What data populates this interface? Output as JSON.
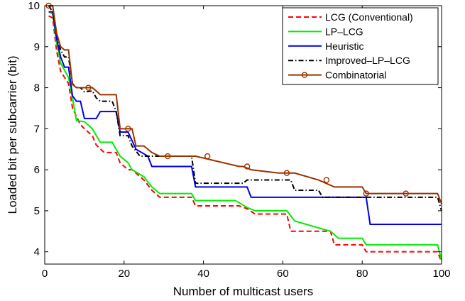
{
  "chart_data": {
    "type": "line",
    "title": "",
    "xlabel": "Number of multicast users",
    "ylabel": "Loaded bit per subcarrier (bit)",
    "xlim": [
      0,
      100
    ],
    "ylim": [
      3.7,
      10
    ],
    "xticks": [
      0,
      20,
      40,
      60,
      80,
      100
    ],
    "yticks": [
      4,
      5,
      6,
      7,
      8,
      9,
      10
    ],
    "grid": false,
    "legend_position": "top-right",
    "series": [
      {
        "name": "LCG (Conventional)",
        "color": "#ff0000",
        "style": "dashed",
        "marker": "none",
        "x": [
          1,
          2,
          3,
          4,
          6,
          7,
          9,
          10,
          12,
          13,
          15,
          18,
          19,
          21,
          22,
          25,
          27,
          29,
          37,
          38,
          49,
          51,
          53,
          61,
          62,
          72,
          73,
          80,
          81,
          99,
          100
        ],
        "y": [
          9.75,
          9.7,
          8.9,
          8.4,
          8.1,
          7.5,
          7.1,
          7.0,
          6.83,
          6.6,
          6.42,
          6.42,
          6.17,
          6.0,
          6.0,
          5.75,
          5.5,
          5.33,
          5.33,
          5.12,
          5.12,
          5.05,
          4.92,
          4.92,
          4.5,
          4.5,
          4.17,
          4.17,
          4.0,
          4.0,
          3.75
        ]
      },
      {
        "name": "LP–LCG",
        "color": "#00ee00",
        "style": "solid",
        "marker": "none",
        "x": [
          1,
          2,
          3,
          4,
          6,
          7,
          8,
          10,
          12,
          14,
          17,
          19,
          21,
          22,
          25,
          27,
          29,
          37,
          38,
          48,
          51,
          53,
          61,
          63,
          72,
          74,
          80,
          81,
          99,
          100
        ],
        "y": [
          9.85,
          9.8,
          9.1,
          8.6,
          8.25,
          7.75,
          7.2,
          7.17,
          7.0,
          6.67,
          6.67,
          6.33,
          6.17,
          6.0,
          5.83,
          5.58,
          5.42,
          5.42,
          5.25,
          5.25,
          5.08,
          5.0,
          5.0,
          4.75,
          4.5,
          4.33,
          4.33,
          4.17,
          4.17,
          3.8
        ]
      },
      {
        "name": "Heuristic",
        "color": "#0000ee",
        "style": "solid",
        "marker": "none",
        "x": [
          1,
          2,
          3,
          4,
          5,
          6,
          7,
          8,
          9,
          10,
          13,
          14,
          18,
          19,
          21,
          23,
          26,
          27,
          37,
          38,
          51,
          52,
          81,
          82,
          100
        ],
        "y": [
          9.85,
          9.85,
          9.2,
          8.75,
          8.5,
          8.5,
          7.8,
          7.67,
          7.67,
          7.25,
          7.25,
          7.42,
          7.42,
          6.92,
          6.92,
          6.5,
          6.33,
          6.08,
          6.08,
          5.58,
          5.58,
          5.33,
          5.33,
          4.67,
          4.67
        ]
      },
      {
        "name": "Improved–LP–LCG",
        "color": "#000000",
        "style": "dashdot",
        "marker": "none",
        "x": [
          1,
          2,
          3,
          4,
          5,
          6,
          7,
          8,
          9,
          10,
          12,
          13,
          14,
          17,
          18,
          19,
          21,
          22,
          24,
          27,
          37,
          38,
          50,
          51,
          53,
          62,
          63,
          69,
          70,
          81,
          82,
          99,
          100
        ],
        "y": [
          10,
          9.85,
          9.33,
          8.92,
          8.75,
          8.75,
          8.1,
          8.0,
          8.0,
          7.9,
          7.92,
          7.75,
          7.67,
          7.67,
          7.42,
          6.83,
          6.83,
          6.58,
          6.33,
          6.33,
          6.33,
          5.67,
          5.67,
          5.75,
          5.75,
          5.75,
          5.5,
          5.5,
          5.33,
          5.33,
          5.33,
          5.33,
          5.0
        ]
      },
      {
        "name": "Combinatorial",
        "color": "#993300",
        "style": "solid",
        "marker": "circle",
        "marker_x": [
          1,
          11,
          21,
          31,
          41,
          51,
          61,
          71,
          81,
          91
        ],
        "x": [
          1,
          2,
          3,
          4,
          5,
          6,
          7,
          8,
          10,
          12,
          13,
          14,
          18,
          19,
          22,
          23,
          25,
          27,
          29,
          38,
          49,
          50,
          52,
          59,
          63,
          69,
          73,
          80,
          81,
          99,
          100
        ],
        "y": [
          10,
          10,
          9.33,
          9.0,
          8.92,
          8.92,
          8.08,
          8.0,
          8.0,
          8.0,
          7.92,
          7.83,
          7.83,
          7.0,
          7.0,
          6.58,
          6.58,
          6.42,
          6.33,
          6.33,
          6.08,
          6.08,
          6.0,
          5.92,
          5.92,
          5.75,
          5.58,
          5.58,
          5.42,
          5.42,
          5.17
        ]
      }
    ]
  }
}
